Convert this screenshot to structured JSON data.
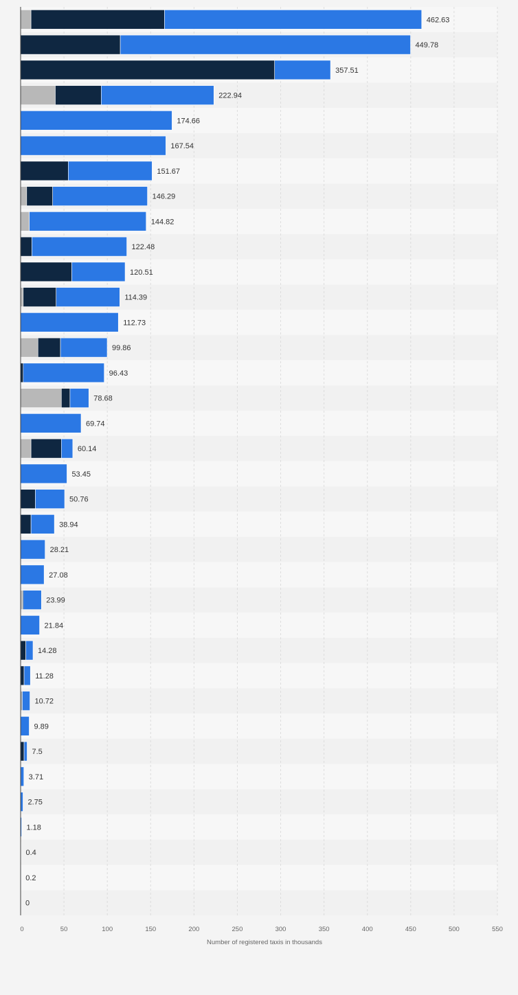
{
  "chart_data": {
    "type": "bar",
    "orientation": "horizontal",
    "stacked": true,
    "title": "",
    "xlabel": "Number of registered taxis in thousands",
    "ylabel": "",
    "xlim": [
      0,
      550
    ],
    "xticks": [
      "0",
      "50",
      "100",
      "150",
      "200",
      "250",
      "300",
      "350",
      "400",
      "450",
      "500",
      "550"
    ],
    "grid": true,
    "legend": "none",
    "colors": {
      "gray": "#b8b8b8",
      "navy": "#0f2741",
      "blue": "#2b78e4",
      "row_even": "#f7f7f7",
      "row_odd": "#f1f1f1",
      "grid": "#dcdcdc",
      "axis": "#444444"
    },
    "series": [
      {
        "color": "gray",
        "values": [
          12,
          0,
          0,
          40,
          0,
          0,
          0,
          7,
          10,
          0,
          0,
          3,
          0,
          20,
          0,
          47,
          0,
          12,
          0,
          0,
          0,
          0,
          0,
          2,
          0,
          0,
          0,
          1,
          0,
          0,
          0,
          0,
          0,
          0,
          0,
          0
        ]
      },
      {
        "color": "navy",
        "values": [
          154,
          115,
          293,
          53,
          0,
          0,
          55,
          30,
          0,
          13,
          59,
          38,
          0,
          26,
          3,
          10,
          0,
          35,
          0,
          17,
          12,
          0,
          0,
          1,
          0,
          6,
          4,
          1,
          0,
          4,
          0,
          0,
          0,
          0,
          0,
          0
        ]
      },
      {
        "color": "blue",
        "values": [
          296.63,
          334.78,
          64.51,
          129.94,
          174.66,
          167.54,
          96.67,
          109.29,
          134.82,
          109.48,
          61.51,
          73.39,
          112.73,
          53.86,
          93.43,
          21.68,
          69.74,
          13.14,
          53.45,
          33.76,
          26.94,
          28.21,
          27.08,
          20.99,
          21.84,
          8.28,
          7.28,
          8.72,
          9.89,
          3.5,
          3.71,
          2.75,
          1.18,
          0.4,
          0.2,
          0
        ]
      }
    ],
    "totals": [
      "462.63",
      "449.78",
      "357.51",
      "222.94",
      "174.66",
      "167.54",
      "151.67",
      "146.29",
      "144.82",
      "122.48",
      "120.51",
      "114.39",
      "112.73",
      "99.86",
      "96.43",
      "78.68",
      "69.74",
      "60.14",
      "53.45",
      "50.76",
      "38.94",
      "28.21",
      "27.08",
      "23.99",
      "21.84",
      "14.28",
      "11.28",
      "10.72",
      "9.89",
      "7.5",
      "3.71",
      "2.75",
      "1.18",
      "0.4",
      "0.2",
      "0"
    ]
  }
}
